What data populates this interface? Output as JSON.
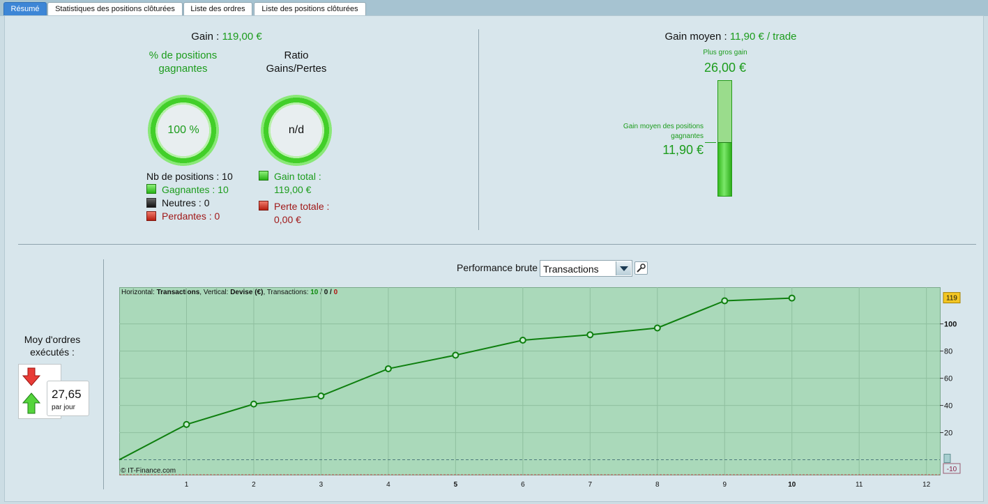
{
  "tabs": [
    "Résumé",
    "Statistiques des positions clôturées",
    "Liste des ordres",
    "Liste des positions clôturées"
  ],
  "summary": {
    "gain_label": "Gain : ",
    "gain_value": "119,00 €",
    "pct_winning_title": "% de positions gagnantes",
    "pct_winning_value": "100 %",
    "ratio_title": "Ratio Gains/Pertes",
    "ratio_value": "n/d",
    "nb_positions": "Nb de positions : 10",
    "winning": "Gagnantes : 10",
    "neutral": "Neutres : 0",
    "losing": "Perdantes : 0",
    "gain_total_label": "Gain total :",
    "gain_total_value": "119,00 €",
    "perte_totale_label": "Perte totale :",
    "perte_totale_value": "0,00 €"
  },
  "avg_gain": {
    "label": "Gain moyen : ",
    "value": "11,90 € / trade",
    "biggest_label": "Plus gros gain",
    "biggest_value": "26,00 €",
    "avg_winning_label_1": "Gain moyen des positions",
    "avg_winning_label_2": "gagnantes",
    "avg_winning_value": "11,90 €",
    "fill_fraction": 0.4577
  },
  "orders": {
    "title_1": "Moy d'ordres",
    "title_2": "exécutés :",
    "value": "27,65",
    "unit": "par jour"
  },
  "performance": {
    "title": "Performance brute",
    "select_value": "Transactions",
    "info_prefix": "Horizontal: ",
    "info_h": "Transactions",
    "info_mid": ", Vertical: ",
    "info_v": "Devise (€)",
    "info_tx": ", Transactions: ",
    "info_w": "10",
    "info_sep1": " / ",
    "info_n": "0",
    "info_sep2": " / ",
    "info_l": "0",
    "copyright": "© IT-Finance.com"
  },
  "chart_data": {
    "type": "line",
    "x": [
      0,
      1,
      2,
      3,
      4,
      5,
      6,
      7,
      8,
      9,
      10
    ],
    "values": [
      0,
      26,
      41,
      47,
      67,
      77,
      88,
      92,
      97,
      117,
      119
    ],
    "x_ticks": [
      1,
      2,
      3,
      4,
      5,
      6,
      7,
      8,
      9,
      10,
      11,
      12
    ],
    "bold_x_ticks": [
      5,
      10
    ],
    "y_ticks": [
      20,
      40,
      60,
      80,
      100
    ],
    "bold_y_ticks": [
      100
    ],
    "last_value_badge": "119",
    "min_badge": "-10",
    "xlim": [
      0,
      12.2
    ],
    "ylim": [
      -11,
      127
    ],
    "grid": true,
    "line_color": "#0e7f0e"
  }
}
